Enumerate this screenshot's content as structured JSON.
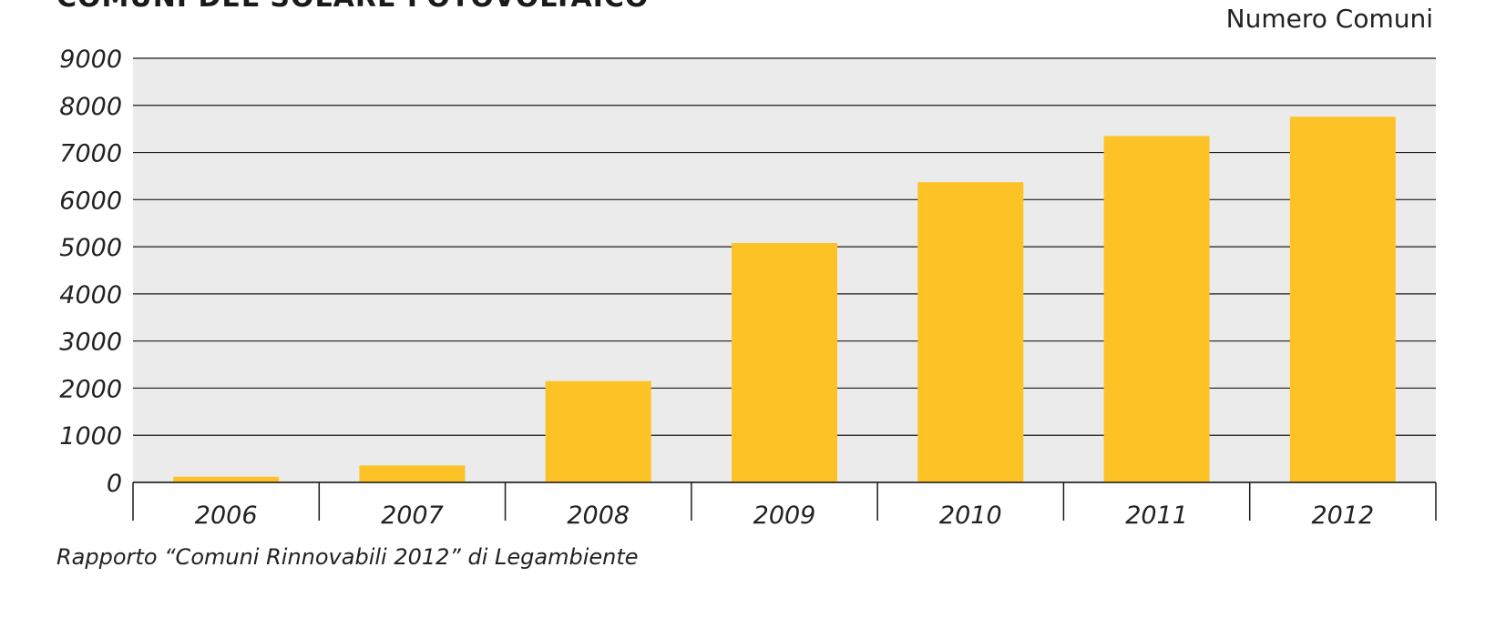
{
  "header": {
    "title_fragment": "COMUNI DEL SOLARE FOTOVOLTAICO",
    "unit_label": "Numero Comuni"
  },
  "footer": {
    "source": "Rapporto “Comuni Rinnovabili 2012” di Legambiente"
  },
  "colors": {
    "bar": "#FDC326",
    "plot_background": "#EBEBEB",
    "gridline": "#1a1a1a",
    "text": "#222222"
  },
  "chart_data": {
    "type": "bar",
    "categories": [
      "2006",
      "2007",
      "2008",
      "2009",
      "2010",
      "2011",
      "2012"
    ],
    "values": [
      120,
      360,
      2150,
      5080,
      6370,
      7350,
      7760
    ],
    "title": "",
    "xlabel": "",
    "ylabel": "Numero Comuni",
    "ylim": [
      0,
      9000
    ],
    "yticks": [
      0,
      1000,
      2000,
      3000,
      4000,
      5000,
      6000,
      7000,
      8000,
      9000
    ],
    "grid": true,
    "legend": "none"
  }
}
